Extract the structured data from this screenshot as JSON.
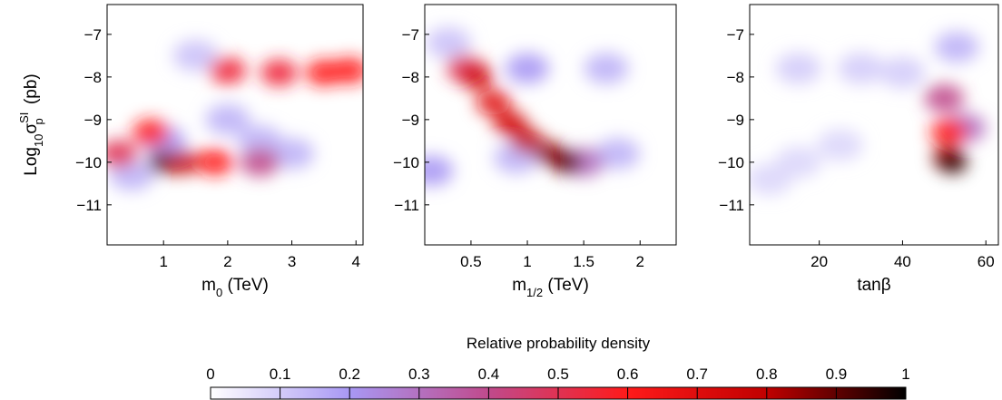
{
  "chart_data": [
    {
      "type": "density",
      "y_label": {
        "base": "Log",
        "base_sub": "10",
        "symbol": "σ",
        "sup": "SI",
        "sub": "p",
        "unit": "(pb)"
      },
      "x_label": {
        "base": "m",
        "sub": "0",
        "unit": "(TeV)"
      },
      "xlim": [
        0.12,
        4.11
      ],
      "ylim": [
        -11.94,
        -6.3
      ],
      "xticks": [
        1,
        2,
        3,
        4
      ],
      "yticks": [
        {
          "value": -7,
          "label": "−7"
        },
        {
          "value": -8,
          "label": "−8"
        },
        {
          "value": -9,
          "label": "−9"
        },
        {
          "value": -10,
          "label": "−10"
        },
        {
          "value": -11,
          "label": "−11"
        }
      ],
      "x": [
        0.5,
        1,
        2,
        2.5,
        1.5,
        3,
        0.3,
        0.8,
        1,
        1.3,
        1.8,
        2.5,
        2,
        2.8,
        3.5,
        3.9
      ],
      "y": [
        -10.3,
        -9.5,
        -9.0,
        -9.5,
        -7.5,
        -9.8,
        -9.8,
        -9.3,
        -10,
        -10,
        -10,
        -10,
        -7.85,
        -7.9,
        -7.9,
        -7.85
      ],
      "density": [
        0.15,
        0.2,
        0.15,
        0.15,
        0.12,
        0.15,
        0.5,
        0.6,
        0.9,
        0.8,
        0.6,
        0.4,
        0.55,
        0.55,
        0.6,
        0.6
      ]
    },
    {
      "type": "density",
      "x_label": {
        "base": "m",
        "sub": "1/2",
        "unit": "(TeV)"
      },
      "xlim": [
        0.09,
        2.32
      ],
      "ylim": [
        -11.94,
        -6.3
      ],
      "xticks": [
        0.5,
        1,
        1.5,
        2
      ],
      "yticks": [
        {
          "value": -7,
          "label": "−7"
        },
        {
          "value": -8,
          "label": "−8"
        },
        {
          "value": -9,
          "label": "−9"
        },
        {
          "value": -10,
          "label": "−10"
        },
        {
          "value": -11,
          "label": "−11"
        }
      ],
      "x": [
        0.3,
        1.0,
        1.7,
        0.15,
        1.8,
        0.9,
        1.5,
        0.45,
        0.55,
        0.7,
        0.85,
        1.0,
        1.2,
        1.35
      ],
      "y": [
        -7.2,
        -7.8,
        -7.8,
        -10.2,
        -9.8,
        -9.9,
        -10.0,
        -7.8,
        -8.0,
        -8.6,
        -9.1,
        -9.5,
        -9.8,
        -10
      ],
      "density": [
        0.12,
        0.2,
        0.15,
        0.2,
        0.15,
        0.15,
        0.3,
        0.5,
        0.75,
        0.7,
        0.75,
        0.8,
        0.85,
        0.9
      ]
    },
    {
      "type": "density",
      "x_label": {
        "base": "tanβ"
      },
      "xlim": [
        3.3,
        63
      ],
      "ylim": [
        -11.94,
        -6.3
      ],
      "xticks": [
        20,
        40,
        60
      ],
      "yticks": [
        {
          "value": -7,
          "label": "−7"
        },
        {
          "value": -8,
          "label": "−8"
        },
        {
          "value": -9,
          "label": "−9"
        },
        {
          "value": -10,
          "label": "−10"
        },
        {
          "value": -11,
          "label": "−11"
        }
      ],
      "x": [
        30,
        15,
        40,
        15,
        25,
        8,
        53,
        55,
        50,
        51,
        51,
        52
      ],
      "y": [
        -7.8,
        -7.8,
        -7.9,
        -10,
        -9.6,
        -10.4,
        -7.3,
        -9.2,
        -8.5,
        -9.3,
        -9.9,
        -10
      ],
      "density": [
        0.1,
        0.1,
        0.1,
        0.08,
        0.08,
        0.08,
        0.15,
        0.3,
        0.4,
        0.6,
        0.85,
        0.95
      ]
    },
    {
      "type": "colorbar",
      "title": "Relative probability density",
      "xlim": [
        0,
        1
      ],
      "xticks": [
        0,
        0.1,
        0.2,
        0.3,
        0.4,
        0.5,
        0.6,
        0.7,
        0.8,
        0.9,
        1
      ],
      "colors": [
        "#ffffff",
        "#a898f4",
        "#c04a8c",
        "#ff1a1a",
        "#c00000",
        "#000000"
      ]
    }
  ]
}
